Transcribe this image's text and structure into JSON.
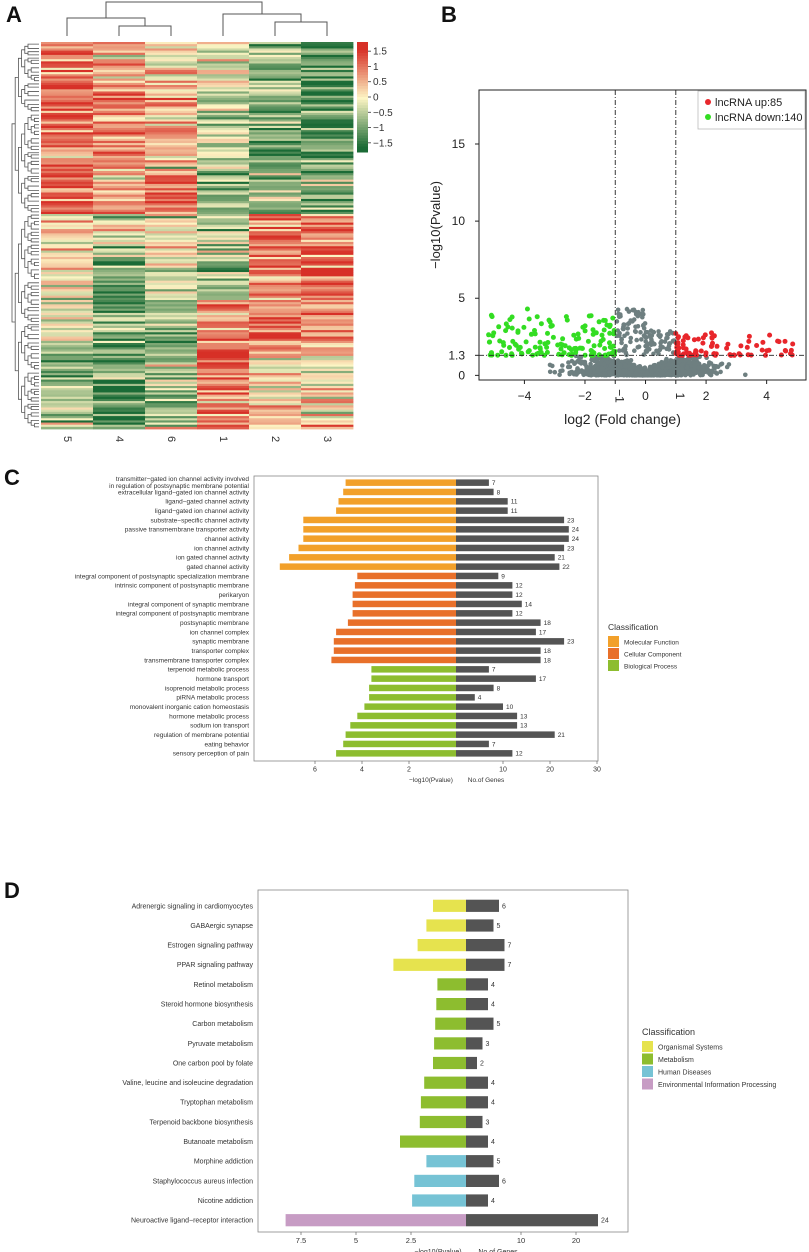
{
  "panels": {
    "a": "A",
    "b": "B",
    "c": "C",
    "d": "D"
  },
  "colors": {
    "heat_low": "#1b6b36",
    "heat_mid": "#fdf5c4",
    "heat_high": "#d73027",
    "up": "#e8262b",
    "down": "#33dd22",
    "ns": "#6e7f80",
    "mf": "#f2a02a",
    "cc": "#e8702a",
    "bp": "#8dbd2f",
    "genes": "#545454",
    "org": "#e6e34e",
    "met": "#8dbd2f",
    "hd": "#76c3d5",
    "eip": "#c79cc4"
  },
  "chart_data": [
    {
      "type": "heatmap",
      "panel": "A",
      "columns": [
        "5",
        "4",
        "6",
        "1",
        "2",
        "3"
      ],
      "colorbar_ticks": [
        "1.5",
        "1",
        "0.5",
        "0",
        "−0.5",
        "−1",
        "−1.5"
      ],
      "colorbar_range": [
        -1.5,
        1.5
      ],
      "blocks": [
        {
          "values": [
            1.0,
            0.6,
            0.3,
            -0.2,
            -0.6,
            -1.2
          ]
        },
        {
          "values": [
            1.2,
            0.8,
            0.5,
            -0.5,
            -0.9,
            -1.4
          ]
        },
        {
          "values": [
            0.9,
            1.0,
            0.6,
            -0.3,
            -1.2,
            -0.9
          ]
        },
        {
          "values": [
            1.3,
            0.5,
            1.0,
            -0.6,
            -0.8,
            -0.9
          ]
        },
        {
          "values": [
            0.3,
            -0.2,
            0.2,
            -0.1,
            1.0,
            0.8
          ]
        },
        {
          "values": [
            0.0,
            -1.1,
            -0.3,
            -0.8,
            1.0,
            1.3
          ]
        },
        {
          "values": [
            -0.3,
            -1.0,
            -0.7,
            0.7,
            1.1,
            0.6
          ]
        },
        {
          "values": [
            -0.8,
            -0.9,
            -0.5,
            1.1,
            0.4,
            0.1
          ]
        },
        {
          "values": [
            -0.5,
            -1.1,
            -0.7,
            0.8,
            0.5,
            0.3
          ]
        }
      ]
    },
    {
      "type": "scatter",
      "panel": "B",
      "xlabel": "log2 (Fold change)",
      "ylabel": "−log10(Pvalue)",
      "x_ticks": [
        "−4",
        "−2",
        "−1",
        "0",
        "1",
        "2",
        "4"
      ],
      "y_ticks": [
        "0",
        "1.3",
        "5",
        "10",
        "15"
      ],
      "xlim": [
        -5.5,
        5.3
      ],
      "ylim": [
        -0.3,
        18.5
      ],
      "thresholds": {
        "fc": [
          -1,
          1
        ],
        "p": 1.3
      },
      "legend": [
        {
          "label": "lncRNA up:85",
          "color": "#e8262b"
        },
        {
          "label": "lncRNA down:140",
          "color": "#33dd22"
        }
      ],
      "counts": {
        "up": 85,
        "down": 140
      }
    },
    {
      "type": "bar",
      "panel": "C",
      "xlabel_left": "−log10(Pvalue)",
      "xlabel_right": "No.of Genes",
      "left_ticks": [
        "6",
        "4",
        "2"
      ],
      "right_ticks": [
        "10",
        "20",
        "30"
      ],
      "legend_title": "Classification",
      "legend": [
        {
          "label": "Molecular Function",
          "color": "#f2a02a"
        },
        {
          "label": "Cellular Component",
          "color": "#e8702a"
        },
        {
          "label": "Biological Process",
          "color": "#8dbd2f"
        }
      ],
      "categories": [
        "transmitter−gated ion channel activity involved|in regulation of postsynaptic membrane potential",
        "extracellular ligand−gated ion channel activity",
        "ligand−gated channel activity",
        "ligand−gated ion channel activity",
        "substrate−specific channel activity",
        "passive transmembrane transporter activity",
        "channel activity",
        "ion channel activity",
        "ion gated channel activity",
        "gated channel activity",
        "integral component of postsynaptic specialization membrane",
        "intrinsic component of postsynaptic membrane",
        "perikaryon",
        "integral component of synaptic membrane",
        "integral component of postsynaptic membrane",
        "postsynaptic membrane",
        "ion channel complex",
        "synaptic membrane",
        "transporter complex",
        "transmembrane transporter complex",
        "terpenoid metabolic process",
        "hormone transport",
        "isoprenoid metabolic process",
        "piRNA metabolic process",
        "monovalent inorganic cation homeostasis",
        "hormone metabolic process",
        "sodium ion transport",
        "regulation of membrane potential",
        "eating behavior",
        "sensory perception of pain"
      ],
      "classes": [
        "mf",
        "mf",
        "mf",
        "mf",
        "mf",
        "mf",
        "mf",
        "mf",
        "mf",
        "mf",
        "cc",
        "cc",
        "cc",
        "cc",
        "cc",
        "cc",
        "cc",
        "cc",
        "cc",
        "cc",
        "bp",
        "bp",
        "bp",
        "bp",
        "bp",
        "bp",
        "bp",
        "bp",
        "bp",
        "bp"
      ],
      "pvalues": [
        4.7,
        4.8,
        5.0,
        5.1,
        6.5,
        6.5,
        6.5,
        6.7,
        7.1,
        7.5,
        4.2,
        4.3,
        4.4,
        4.4,
        4.4,
        4.6,
        5.1,
        5.2,
        5.2,
        5.3,
        3.6,
        3.6,
        3.7,
        3.7,
        3.9,
        4.2,
        4.5,
        4.7,
        4.8,
        5.1
      ],
      "genes": [
        7,
        8,
        11,
        11,
        23,
        24,
        24,
        23,
        21,
        22,
        9,
        12,
        12,
        14,
        12,
        18,
        17,
        23,
        18,
        18,
        7,
        17,
        8,
        4,
        10,
        13,
        13,
        21,
        7,
        12
      ]
    },
    {
      "type": "bar",
      "panel": "D",
      "xlabel_left": "−log10(Pvalue)",
      "xlabel_right": "No.of Genes",
      "left_ticks": [
        "7.5",
        "5",
        "2.5"
      ],
      "right_ticks": [
        "10",
        "20"
      ],
      "legend_title": "Classification",
      "legend": [
        {
          "label": "Organismal Systems",
          "color": "#e6e34e"
        },
        {
          "label": "Metabolism",
          "color": "#8dbd2f"
        },
        {
          "label": "Human Diseases",
          "color": "#76c3d5"
        },
        {
          "label": "Environmental Information Processing",
          "color": "#c79cc4"
        }
      ],
      "categories": [
        "Adrenergic signaling in cardiomyocytes",
        "GABAergic synapse",
        "Estrogen signaling pathway",
        "PPAR signaling pathway",
        "Retinol metabolism",
        "Steroid hormone biosynthesis",
        "Carbon metabolism",
        "Pyruvate metabolism",
        "One carbon pool by folate",
        "Valine, leucine and isoleucine degradation",
        "Tryptophan metabolism",
        "Terpenoid backbone biosynthesis",
        "Butanoate metabolism",
        "Morphine addiction",
        "Staphylococcus aureus infection",
        "Nicotine addiction",
        "Neuroactive ligand−receptor interaction"
      ],
      "classes": [
        "org",
        "org",
        "org",
        "org",
        "met",
        "met",
        "met",
        "met",
        "met",
        "met",
        "met",
        "met",
        "met",
        "hd",
        "hd",
        "hd",
        "eip"
      ],
      "pvalues": [
        1.5,
        1.8,
        2.2,
        3.3,
        1.3,
        1.35,
        1.4,
        1.45,
        1.5,
        1.9,
        2.05,
        2.1,
        3.0,
        1.8,
        2.35,
        2.45,
        8.2
      ],
      "genes": [
        6,
        5,
        7,
        7,
        4,
        4,
        5,
        3,
        2,
        4,
        4,
        3,
        4,
        5,
        6,
        4,
        24
      ]
    }
  ]
}
